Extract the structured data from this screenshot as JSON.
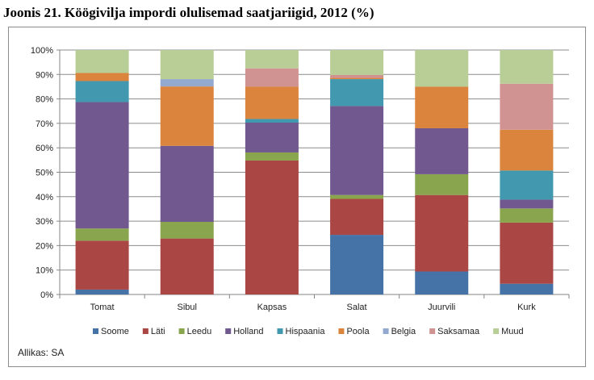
{
  "title": "Joonis 21. Köögivilja impordi olulisemad saatjariigid, 2012 (%)",
  "source": "Allikas: SA",
  "chart_data": {
    "type": "bar",
    "stacked": "percent",
    "categories": [
      "Tomat",
      "Sibul",
      "Kapsas",
      "Salat",
      "Juurvili",
      "Kurk"
    ],
    "ylim": [
      0,
      100
    ],
    "yticks": [
      "0%",
      "10%",
      "20%",
      "30%",
      "40%",
      "50%",
      "60%",
      "70%",
      "80%",
      "90%",
      "100%"
    ],
    "grid": true,
    "legend": "bottom",
    "series": [
      {
        "name": "Soome",
        "color": "#4572a7",
        "values": [
          2,
          0,
          0,
          24.4,
          9.4,
          4.4
        ]
      },
      {
        "name": "Läti",
        "color": "#aa4643",
        "values": [
          20,
          22.9,
          54.8,
          14.7,
          31.3,
          25
        ]
      },
      {
        "name": "Leedu",
        "color": "#89a54e",
        "values": [
          5,
          6.8,
          3.3,
          1.6,
          8.5,
          5.8
        ]
      },
      {
        "name": "Holland",
        "color": "#71588f",
        "values": [
          51.7,
          31.1,
          12.2,
          36.4,
          18.8,
          3.6
        ]
      },
      {
        "name": "Hispaania",
        "color": "#4198af",
        "values": [
          8.6,
          0,
          1.5,
          11,
          0,
          11.9
        ]
      },
      {
        "name": "Poola",
        "color": "#db843d",
        "values": [
          3.3,
          24.3,
          13.2,
          0.5,
          17,
          16.7
        ]
      },
      {
        "name": "Belgia",
        "color": "#93a9cf",
        "values": [
          0,
          3,
          0,
          0,
          0,
          0
        ]
      },
      {
        "name": "Saksamaa",
        "color": "#d19392",
        "values": [
          0,
          0,
          7.5,
          1.2,
          0,
          18.8
        ]
      },
      {
        "name": "Muud",
        "color": "#b9cd96",
        "values": [
          9.4,
          11.9,
          7.5,
          10.2,
          15,
          13.8
        ]
      }
    ]
  }
}
